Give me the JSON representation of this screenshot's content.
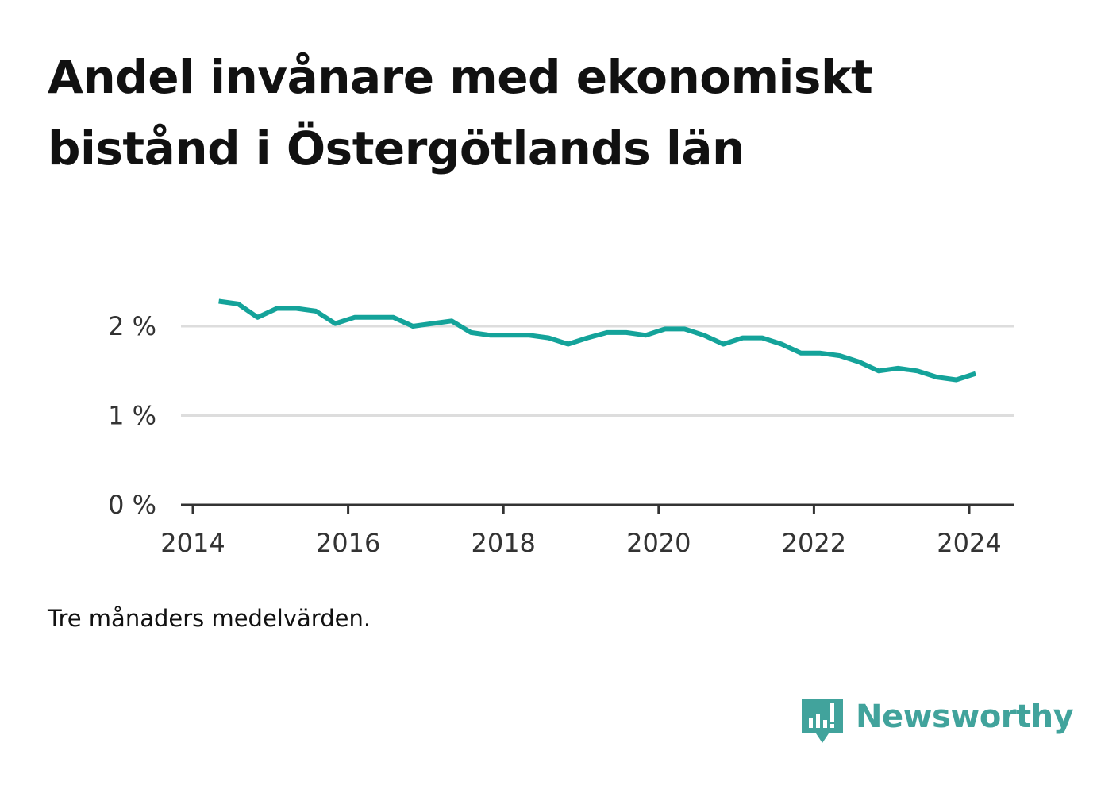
{
  "title": "Andel invånare med ekonomiskt bistånd i Östergötlands län",
  "caption": "Tre månaders medelvärden.",
  "brand": {
    "name": "Newsworthy",
    "color": "#41a39c",
    "icon": "newsworthy-logo-icon"
  },
  "chart_data": {
    "type": "line",
    "title": "Andel invånare med ekonomiskt bistånd i Östergötlands län",
    "xlabel": "",
    "ylabel": "",
    "x_ticks": [
      "2014",
      "2016",
      "2018",
      "2020",
      "2022",
      "2024"
    ],
    "y_ticks": [
      "0 %",
      "1 %",
      "2 %"
    ],
    "ylim": [
      0,
      2.5
    ],
    "grid": true,
    "series_color": "#14a39a",
    "series": [
      {
        "name": "",
        "x": [
          "2014-05",
          "2014-08",
          "2014-11",
          "2015-02",
          "2015-05",
          "2015-08",
          "2015-11",
          "2016-02",
          "2016-05",
          "2016-08",
          "2016-11",
          "2017-02",
          "2017-05",
          "2017-08",
          "2017-11",
          "2018-02",
          "2018-05",
          "2018-08",
          "2018-11",
          "2019-02",
          "2019-05",
          "2019-08",
          "2019-11",
          "2020-02",
          "2020-05",
          "2020-08",
          "2020-11",
          "2021-02",
          "2021-05",
          "2021-08",
          "2021-11",
          "2022-02",
          "2022-05",
          "2022-08",
          "2022-11",
          "2023-02",
          "2023-05",
          "2023-08",
          "2023-11",
          "2024-02"
        ],
        "values": [
          2.28,
          2.25,
          2.1,
          2.2,
          2.2,
          2.17,
          2.03,
          2.1,
          2.1,
          2.1,
          2.0,
          2.03,
          2.06,
          1.93,
          1.9,
          1.9,
          1.9,
          1.87,
          1.8,
          1.87,
          1.93,
          1.93,
          1.9,
          1.97,
          1.97,
          1.9,
          1.8,
          1.87,
          1.87,
          1.8,
          1.7,
          1.7,
          1.67,
          1.6,
          1.5,
          1.53,
          1.5,
          1.43,
          1.4,
          1.47
        ]
      }
    ]
  }
}
